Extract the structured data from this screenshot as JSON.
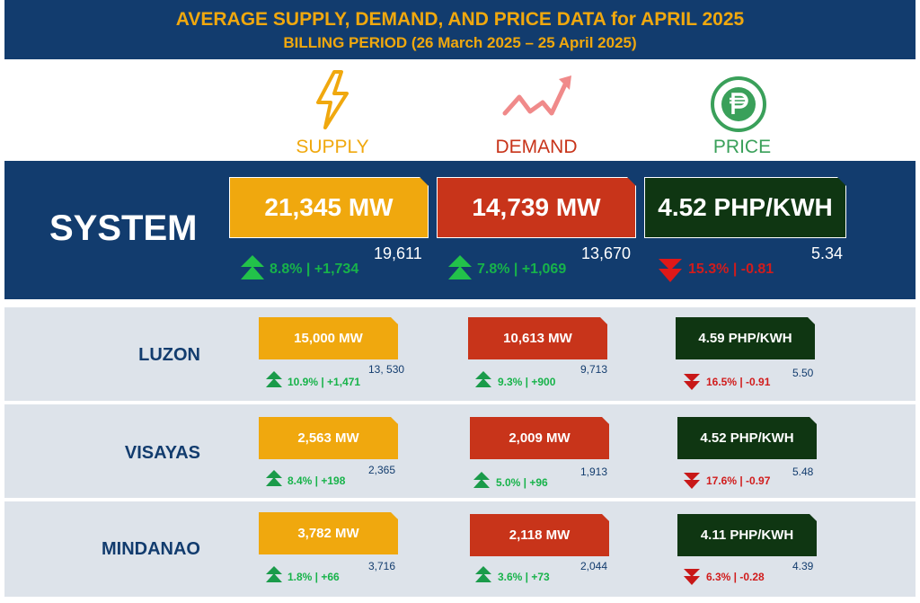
{
  "header": {
    "title": "AVERAGE SUPPLY, DEMAND, AND PRICE DATA for APRIL 2025",
    "subtitle": "BILLING PERIOD (26 March 2025 – 25 April 2025)"
  },
  "columns": {
    "supply": {
      "label": "SUPPLY",
      "icon": "lightning-icon",
      "color": "#f0a80e"
    },
    "demand": {
      "label": "DEMAND",
      "icon": "trend-up-icon",
      "color": "#c8341a"
    },
    "price": {
      "label": "PRICE",
      "icon": "peso-icon",
      "color": "#3aa05a"
    }
  },
  "system": {
    "name": "SYSTEM",
    "supply": {
      "value": "21,345 MW",
      "prev": "19,611",
      "change": "8.8% | +1,734",
      "direction": "up"
    },
    "demand": {
      "value": "14,739 MW",
      "prev": "13,670",
      "change": "7.8% | +1,069",
      "direction": "up"
    },
    "price": {
      "value": "4.52 PHP/KWH",
      "prev": "5.34",
      "change": "15.3% | -0.81",
      "direction": "down"
    }
  },
  "regions": [
    {
      "name": "LUZON",
      "supply": {
        "value": "15,000 MW",
        "prev": "13, 530",
        "change": "10.9% | +1,471",
        "direction": "up"
      },
      "demand": {
        "value": "10,613 MW",
        "prev": "9,713",
        "change": "9.3% | +900",
        "direction": "up"
      },
      "price": {
        "value": "4.59 PHP/KWH",
        "prev": "5.50",
        "change": "16.5% | -0.91",
        "direction": "down"
      }
    },
    {
      "name": "VISAYAS",
      "supply": {
        "value": "2,563 MW",
        "prev": "2,365",
        "change": "8.4% | +198",
        "direction": "up"
      },
      "demand": {
        "value": "2,009 MW",
        "prev": "1,913",
        "change": "5.0% | +96",
        "direction": "up"
      },
      "price": {
        "value": "4.52 PHP/KWH",
        "prev": "5.48",
        "change": "17.6% | -0.97",
        "direction": "down"
      }
    },
    {
      "name": "MINDANAO",
      "supply": {
        "value": "3,782 MW",
        "prev": "3,716",
        "change": "1.8% | +66",
        "direction": "up"
      },
      "demand": {
        "value": "2,118 MW",
        "prev": "2,044",
        "change": "3.6% | +73",
        "direction": "up"
      },
      "price": {
        "value": "4.11 PHP/KWH",
        "prev": "4.39",
        "change": "6.3% | -0.28",
        "direction": "down"
      }
    }
  ]
}
